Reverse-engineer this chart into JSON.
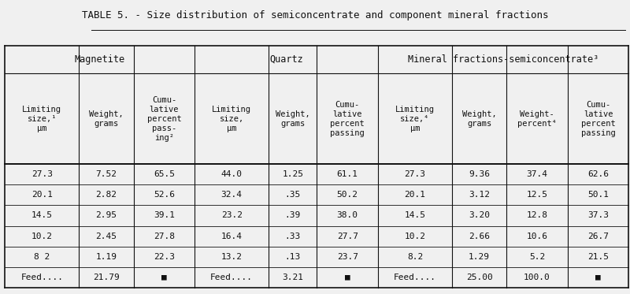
{
  "title": "TABLE 5. - Size distribution of semiconcentrate and component mineral fractions",
  "bg_color": "#f0f0f0",
  "text_color": "#111111",
  "font_family": "monospace",
  "group_defs": [
    {
      "label": "Magnetite",
      "c0": 0,
      "c1": 3
    },
    {
      "label": "Quartz",
      "c0": 3,
      "c1": 6
    },
    {
      "label": "Mineral fractions-semiconcentrate³",
      "c0": 6,
      "c1": 10
    }
  ],
  "col_headers": [
    "Limiting\nsize,¹\nμm",
    "Weight,\ngrams",
    "Cumu-\nlative\npercent\npass-\ning²",
    "Limiting\nsize,\nμm",
    "Weight,\ngrams",
    "Cumu-\nlative\npercent\npassing",
    "Limiting\nsize,⁴\nμm",
    "Weight,\ngrams",
    "Weight-\npercent⁴",
    "Cumu-\nlative\npercent\npassing"
  ],
  "data_rows": [
    [
      "27.3",
      "7.52",
      "65.5",
      "44.0",
      "1.25",
      "61.1",
      "27.3",
      "9.36",
      "37.4",
      "62.6"
    ],
    [
      "20.1",
      "2.82",
      "52.6",
      "32.4",
      ".35",
      "50.2",
      "20.1",
      "3.12",
      "12.5",
      "50.1"
    ],
    [
      "14.5",
      "2.95",
      "39.1",
      "23.2",
      ".39",
      "38.0",
      "14.5",
      "3.20",
      "12.8",
      "37.3"
    ],
    [
      "10.2",
      "2.45",
      "27.8",
      "16.4",
      ".33",
      "27.7",
      "10.2",
      "2.66",
      "10.6",
      "26.7"
    ],
    [
      "8 2",
      "1.19",
      "22.3",
      "13.2",
      ".13",
      "23.7",
      "8.2",
      "1.29",
      "5.2",
      "21.5"
    ],
    [
      "Feed....",
      "21.79",
      "■",
      "Feed....",
      "3.21",
      "■",
      "Feed....",
      "25.00",
      "100.0",
      "■"
    ]
  ],
  "col_widths_rel": [
    1.15,
    0.85,
    0.95,
    1.15,
    0.75,
    0.95,
    1.15,
    0.85,
    0.95,
    0.95
  ],
  "title_fontsize": 9,
  "group_fontsize": 8.5,
  "header_fontsize": 7.5,
  "data_fontsize": 8,
  "figsize": [
    8.0,
    3.73
  ],
  "dpi": 100
}
